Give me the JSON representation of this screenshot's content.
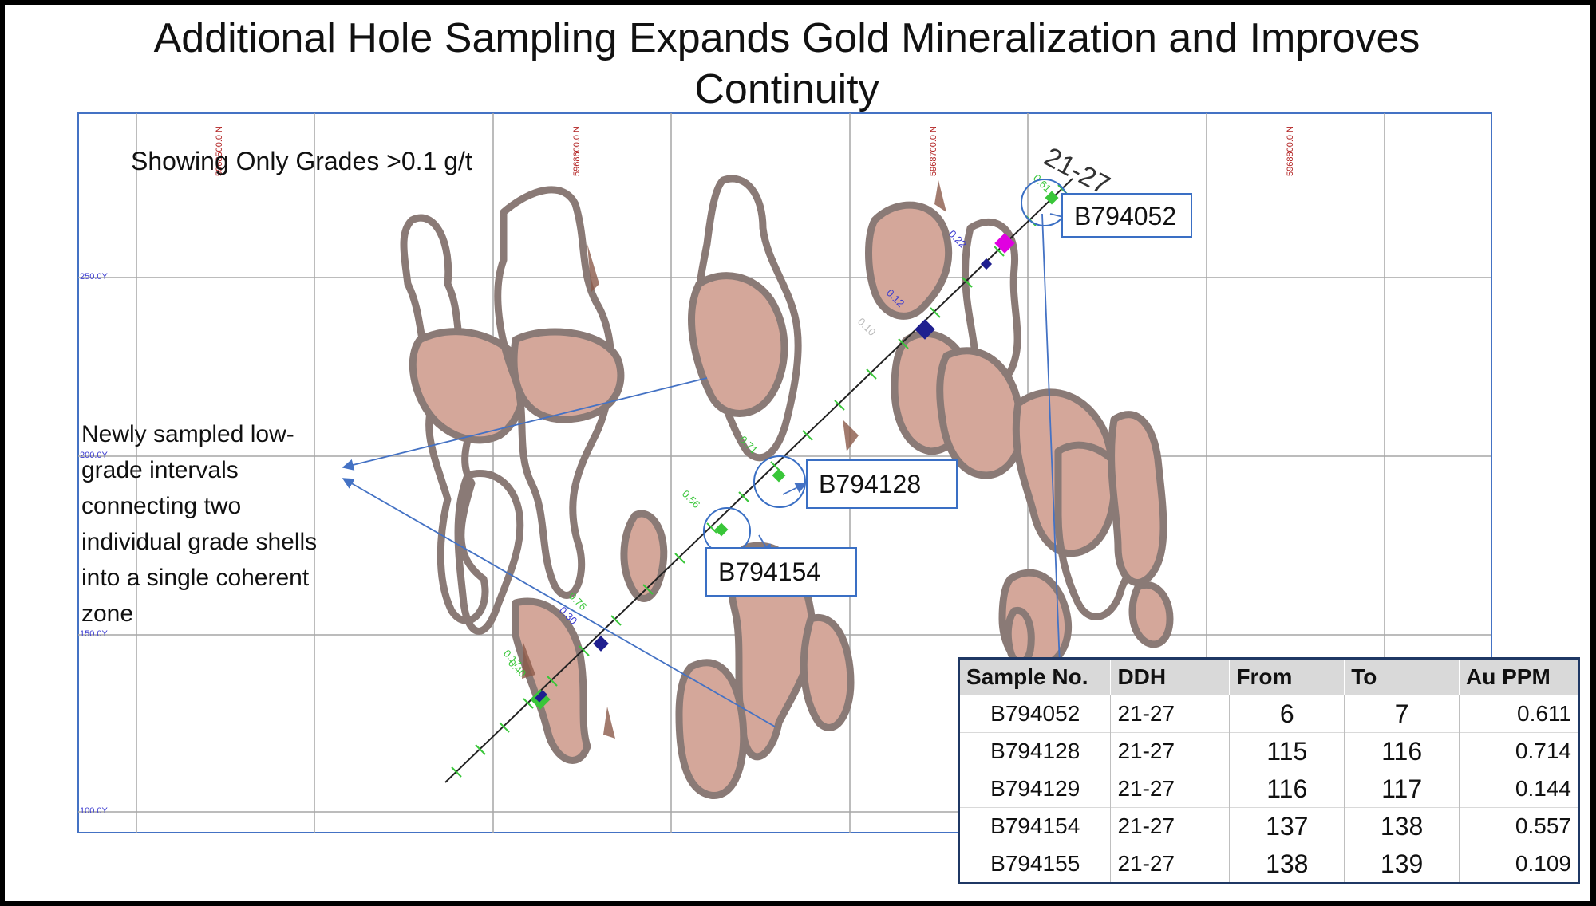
{
  "title": {
    "line1": "Additional Hole Sampling Expands Gold Mineralization and Improves",
    "line2": "Continuity"
  },
  "grades_note": "Showing Only Grades >0.1 g/t",
  "callout_text": "Newly sampled low-grade intervals connecting two individual grade shells into a single coherent zone",
  "drillhole": {
    "id": "21-27"
  },
  "sample_labels": {
    "a": "B794052",
    "b": "B794128",
    "c": "B794154"
  },
  "axes": {
    "northing_labels": [
      "5968500.0 N",
      "5968600.0 N",
      "5968700.0 N",
      "5968800.0 N"
    ],
    "elevation_labels": [
      "250.0Y",
      "200.0Y",
      "150.0Y",
      "100.0Y"
    ]
  },
  "hole_values": [
    "0.61",
    "0.22",
    "0.12",
    "0.10",
    "0.71",
    "0.56",
    "0.76",
    "0.30",
    "0.17",
    "0.40"
  ],
  "table": {
    "headers": [
      "Sample No.",
      "DDH",
      "From",
      "To",
      "Au PPM"
    ],
    "rows": [
      [
        "B794052",
        "21-27",
        "6",
        "7",
        "0.611"
      ],
      [
        "B794128",
        "21-27",
        "115",
        "116",
        "0.714"
      ],
      [
        "B794129",
        "21-27",
        "116",
        "117",
        "0.144"
      ],
      [
        "B794154",
        "21-27",
        "137",
        "138",
        "0.557"
      ],
      [
        "B794155",
        "21-27",
        "138",
        "139",
        "0.109"
      ]
    ]
  },
  "colors": {
    "shell_fill": "#d4a79a",
    "shell_edge": "#8a7a76",
    "trace_green": "#39c639",
    "grid": "#a6a6a6",
    "arrow_blue": "#4472c4"
  }
}
